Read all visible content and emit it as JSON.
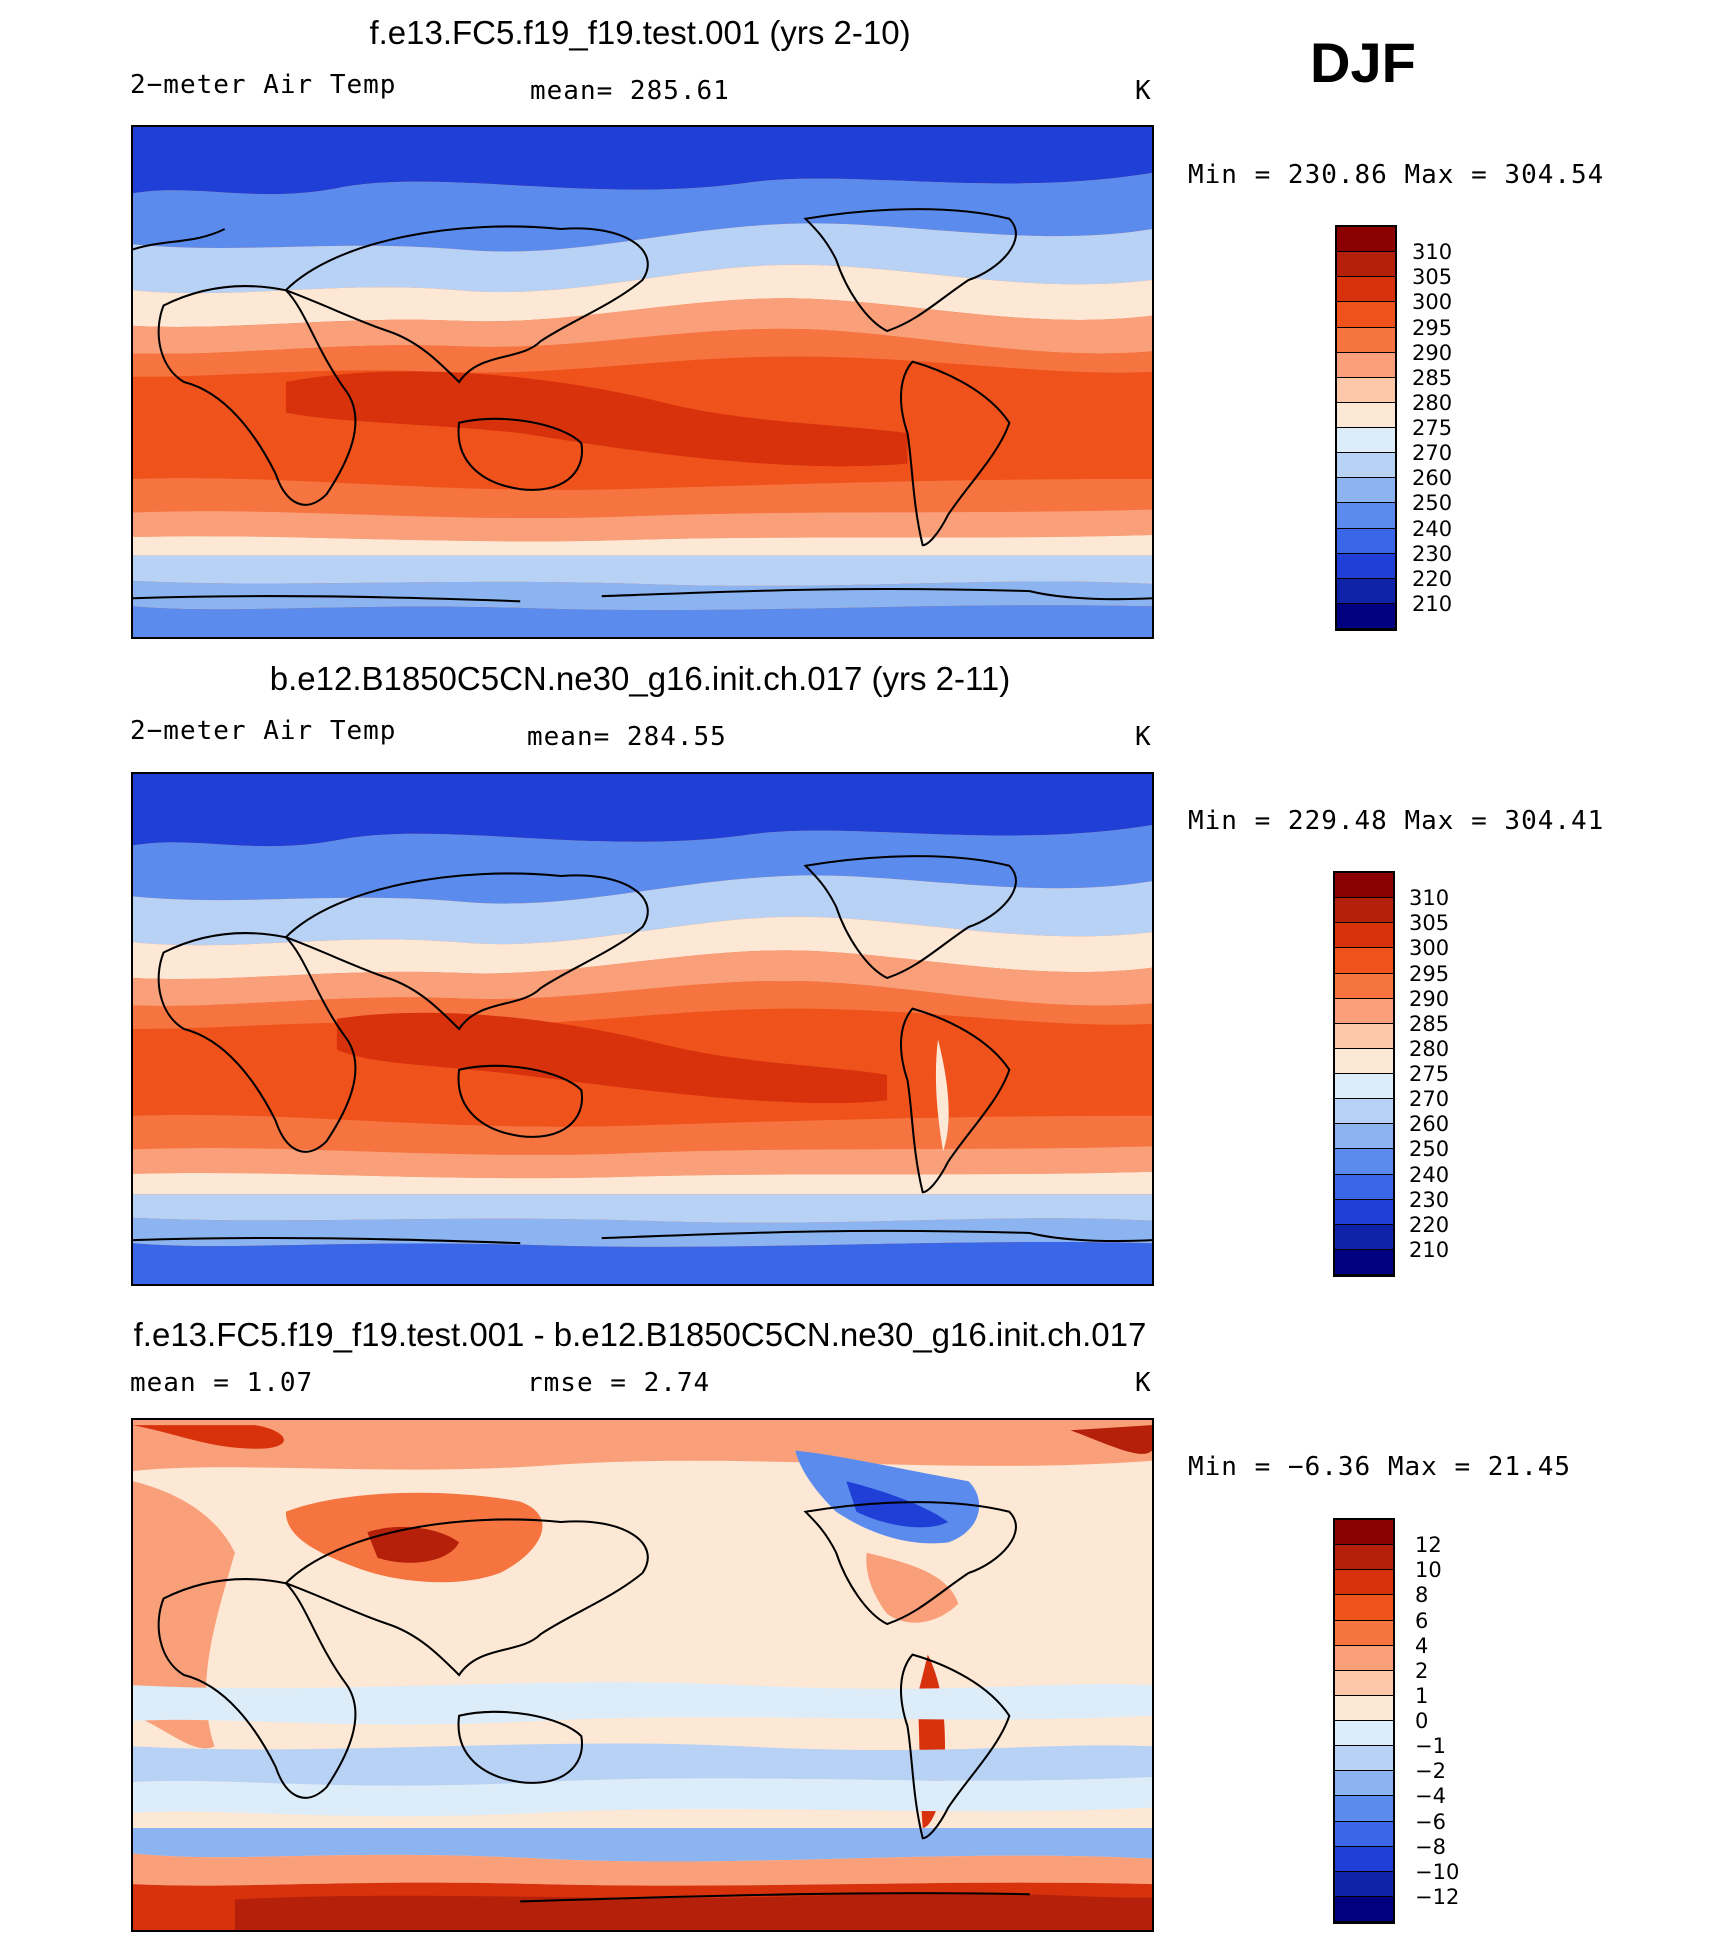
{
  "season": "DJF",
  "panels": [
    {
      "title": "f.e13.FC5.f19_f19.test.001 (yrs 2-10)",
      "left_label": "2−meter Air Temp",
      "center_label": "mean=  285.61",
      "units": "K",
      "minmax": "Min  =  230.86  Max  =  304.54",
      "legend_labels": [
        "310",
        "305",
        "300",
        "295",
        "290",
        "285",
        "280",
        "275",
        "270",
        "260",
        "250",
        "240",
        "230",
        "220",
        "210"
      ],
      "legend_colors": [
        "#8b0000",
        "#b4200a",
        "#d8320d",
        "#f0521c",
        "#f5743f",
        "#f9a07a",
        "#fcc8a8",
        "#fde8d6",
        "#dcecf8",
        "#b8d2f5",
        "#8cb4f0",
        "#5b8ced",
        "#3a66e8",
        "#1f3fd6",
        "#0f23a8",
        "#000080"
      ],
      "map_style": "temperature"
    },
    {
      "title": "b.e12.B1850C5CN.ne30_g16.init.ch.017 (yrs 2-11)",
      "left_label": "2−meter Air Temp",
      "center_label": "mean=  284.55",
      "units": "K",
      "minmax": "Min  =  229.48  Max  =  304.41",
      "legend_labels": [
        "310",
        "305",
        "300",
        "295",
        "290",
        "285",
        "280",
        "275",
        "270",
        "260",
        "250",
        "240",
        "230",
        "220",
        "210"
      ],
      "legend_colors": [
        "#8b0000",
        "#b4200a",
        "#d8320d",
        "#f0521c",
        "#f5743f",
        "#f9a07a",
        "#fcc8a8",
        "#fde8d6",
        "#dcecf8",
        "#b8d2f5",
        "#8cb4f0",
        "#5b8ced",
        "#3a66e8",
        "#1f3fd6",
        "#0f23a8",
        "#000080"
      ],
      "map_style": "temperature"
    },
    {
      "title": "f.e13.FC5.f19_f19.test.001 - b.e12.B1850C5CN.ne30_g16.init.ch.017",
      "left_label": "mean =     1.07",
      "center_label": "rmse =     2.74",
      "units": "K",
      "minmax": "Min  =   −6.36  Max  =    21.45",
      "legend_labels": [
        "12",
        "10",
        "8",
        "6",
        "4",
        "2",
        "1",
        "0",
        "−1",
        "−2",
        "−4",
        "−6",
        "−8",
        "−10",
        "−12"
      ],
      "legend_colors": [
        "#8b0000",
        "#b4200a",
        "#d8320d",
        "#f0521c",
        "#f5743f",
        "#f9a07a",
        "#fcc8a8",
        "#fde8d6",
        "#dcecf8",
        "#b8d2f5",
        "#8cb4f0",
        "#5b8ced",
        "#3a66e8",
        "#1f3fd6",
        "#0f23a8",
        "#000080"
      ],
      "map_style": "difference"
    }
  ]
}
